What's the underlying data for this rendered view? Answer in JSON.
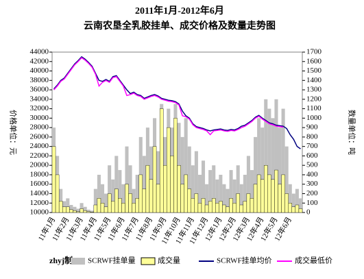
{
  "chart_data": {
    "type": "combo",
    "title": "2011年1月-2012年6月",
    "subtitle": "云南农垦全乳胶挂单、成交价格及数量走势图",
    "y_label": "价格单位：元",
    "y2_label": "数量单位：吨",
    "credit": "zhyj制",
    "categories": [
      "11年1月",
      null,
      null,
      null,
      "11年2月",
      null,
      null,
      null,
      "11年3月",
      null,
      null,
      null,
      "11年4月",
      null,
      null,
      null,
      "11年5月",
      null,
      null,
      null,
      "11年6月",
      null,
      null,
      null,
      "11年7月",
      null,
      null,
      null,
      "11年8月",
      null,
      null,
      null,
      "11年9月",
      null,
      null,
      null,
      "11年10月",
      null,
      null,
      null,
      "11年11月",
      null,
      null,
      null,
      "11年12月",
      null,
      null,
      null,
      "12年1月",
      null,
      null,
      null,
      "12年2月",
      null,
      null,
      null,
      "12年3月",
      null,
      null,
      null,
      "12年4月",
      null,
      null,
      null,
      "12年5月",
      null,
      null,
      null,
      "12年6月",
      null,
      null,
      null
    ],
    "ylim": [
      10000,
      44000
    ],
    "yticks": [
      10000,
      12000,
      14000,
      16000,
      18000,
      20000,
      22000,
      24000,
      26000,
      28000,
      30000,
      32000,
      34000,
      36000,
      38000,
      40000,
      42000,
      44000
    ],
    "y2lim": [
      0,
      1700
    ],
    "y2ticks": [
      0,
      100,
      200,
      300,
      400,
      500,
      600,
      700,
      800,
      900,
      1000,
      1100,
      1200,
      1300,
      1400,
      1500,
      1600,
      1700
    ],
    "series": [
      {
        "name": "SCRWF挂单量",
        "color": "#c0c0c0",
        "kind": "area",
        "axis": "y2",
        "values": [
          900,
          600,
          250,
          120,
          150,
          80,
          60,
          40,
          100,
          60,
          30,
          20,
          250,
          400,
          300,
          200,
          500,
          350,
          600,
          450,
          300,
          700,
          500,
          250,
          400,
          800,
          600,
          900,
          700,
          1000,
          650,
          1150,
          800,
          1100,
          900,
          1150,
          950,
          800,
          1000,
          700,
          500,
          650,
          400,
          550,
          300,
          450,
          500,
          350,
          400,
          300,
          250,
          450,
          350,
          500,
          300,
          400,
          600,
          450,
          800,
          1000,
          900,
          1200,
          1100,
          1000,
          1200,
          900,
          1100,
          700,
          300,
          200,
          250,
          150
        ]
      },
      {
        "name": "成交量",
        "color": "#ffff99",
        "kind": "area",
        "axis": "y2",
        "values": [
          700,
          400,
          120,
          60,
          60,
          30,
          20,
          10,
          40,
          20,
          10,
          5,
          80,
          150,
          100,
          60,
          200,
          120,
          250,
          150,
          100,
          300,
          200,
          100,
          150,
          400,
          250,
          500,
          350,
          700,
          300,
          1100,
          500,
          900,
          600,
          1000,
          500,
          300,
          400,
          250,
          150,
          200,
          100,
          150,
          80,
          120,
          150,
          100,
          120,
          80,
          60,
          150,
          100,
          200,
          80,
          120,
          200,
          150,
          300,
          400,
          350,
          500,
          400,
          350,
          450,
          300,
          400,
          200,
          100,
          60,
          80,
          40
        ]
      },
      {
        "name": "SCRWF挂单均价",
        "color": "#000080",
        "kind": "line",
        "axis": "y",
        "values": [
          36200,
          37000,
          38000,
          38500,
          39500,
          40500,
          41500,
          42200,
          43000,
          42500,
          41800,
          41000,
          39500,
          38000,
          37800,
          38200,
          37800,
          38800,
          39000,
          38000,
          37000,
          36000,
          35200,
          35500,
          35000,
          34800,
          34200,
          34500,
          34800,
          35000,
          34700,
          34200,
          34000,
          33800,
          33700,
          33500,
          33000,
          31500,
          30500,
          30000,
          28800,
          28200,
          28000,
          27800,
          27500,
          27300,
          27500,
          27600,
          27700,
          27500,
          27400,
          27600,
          27500,
          27800,
          28300,
          28500,
          29000,
          29500,
          30200,
          30600,
          30000,
          29500,
          29000,
          28800,
          28500,
          28400,
          28300,
          27800,
          26500,
          25500,
          24000,
          23500
        ]
      },
      {
        "name": "成交最低价",
        "color": "#ff00ff",
        "kind": "line",
        "axis": "y",
        "values": [
          36000,
          36800,
          37800,
          38300,
          39300,
          40300,
          41300,
          42000,
          42800,
          42300,
          41600,
          40800,
          39300,
          36800,
          37600,
          38000,
          37600,
          38600,
          38800,
          37800,
          36800,
          34800,
          35000,
          35300,
          34800,
          34600,
          34000,
          34300,
          34600,
          34800,
          34500,
          34000,
          33800,
          33600,
          33500,
          33300,
          32800,
          30500,
          30300,
          29800,
          28600,
          28000,
          27800,
          27600,
          27300,
          26500,
          27300,
          27400,
          27500,
          27300,
          27200,
          27400,
          27300,
          27600,
          28000,
          28300,
          28800,
          29300,
          30000,
          30400,
          29800,
          29300,
          28800,
          28600,
          28300,
          28200,
          28100,
          null,
          null,
          null,
          null,
          null
        ]
      }
    ]
  }
}
